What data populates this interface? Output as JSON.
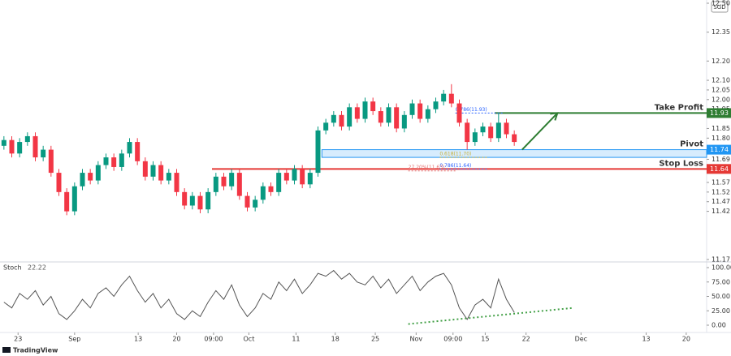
{
  "chart_data": {
    "type": "candlestick",
    "currency": "SGD",
    "brand": "TradingView",
    "xlim": [
      0,
      90
    ],
    "xticks": [
      {
        "value": 2.3,
        "label": "23"
      },
      {
        "value": 9.5,
        "label": "Sep"
      },
      {
        "value": 17.6,
        "label": "13"
      },
      {
        "value": 22.5,
        "label": "20"
      },
      {
        "value": 27.2,
        "label": "09:00"
      },
      {
        "value": 31.7,
        "label": "Oct"
      },
      {
        "value": 37.7,
        "label": "11"
      },
      {
        "value": 42.7,
        "label": "18"
      },
      {
        "value": 47.8,
        "label": "25"
      },
      {
        "value": 53,
        "label": "Nov"
      },
      {
        "value": 57.7,
        "label": "09:00"
      },
      {
        "value": 61.8,
        "label": "15"
      },
      {
        "value": 67,
        "label": "22"
      },
      {
        "value": 74,
        "label": "Dec"
      },
      {
        "value": 82.3,
        "label": "13"
      },
      {
        "value": 87.4,
        "label": "20"
      }
    ],
    "ylim": [
      11.17,
      12.5
    ],
    "yticks": [
      {
        "value": 12.5,
        "label": "12.50"
      },
      12.35,
      {
        "value": 12.2,
        "label": "12.20"
      },
      {
        "value": 12.1,
        "label": "12.10"
      },
      12.05,
      {
        "value": 12.0,
        "label": "12.00"
      },
      11.95,
      11.85,
      {
        "value": 11.8,
        "label": "11.80"
      },
      11.69,
      11.57,
      11.52,
      11.47,
      11.42,
      11.17
    ],
    "grid": false,
    "up_color": "#089981",
    "down_color": "#f23645",
    "open": [
      11.76,
      11.79,
      11.72,
      11.78,
      11.81,
      11.7,
      11.74,
      11.62,
      11.52,
      11.42,
      11.55,
      11.62,
      11.58,
      11.66,
      11.7,
      11.65,
      11.72,
      11.78,
      11.68,
      11.6,
      11.66,
      11.58,
      11.62,
      11.52,
      11.45,
      11.5,
      11.43,
      11.52,
      11.6,
      11.55,
      11.62,
      11.5,
      11.44,
      11.48,
      11.55,
      11.52,
      11.62,
      11.58,
      11.64,
      11.56,
      11.62,
      11.84,
      11.88,
      11.92,
      11.86,
      11.96,
      11.9,
      11.99,
      11.94,
      11.88,
      11.96,
      11.85,
      11.92,
      11.98,
      11.9,
      11.95,
      11.99,
      12.03,
      11.98,
      11.88,
      11.78,
      11.83,
      11.86,
      11.8,
      11.88,
      11.82
    ],
    "high": [
      11.81,
      11.81,
      11.8,
      11.83,
      11.83,
      11.76,
      11.76,
      11.64,
      11.54,
      11.57,
      11.64,
      11.64,
      11.68,
      11.72,
      11.72,
      11.74,
      11.8,
      11.8,
      11.7,
      11.68,
      11.68,
      11.64,
      11.64,
      11.54,
      11.52,
      11.52,
      11.54,
      11.62,
      11.62,
      11.64,
      11.64,
      11.52,
      11.5,
      11.57,
      11.57,
      11.64,
      11.64,
      11.66,
      11.66,
      11.64,
      11.86,
      11.9,
      11.94,
      11.94,
      11.98,
      11.98,
      12.01,
      12.01,
      11.96,
      11.98,
      11.98,
      11.94,
      12.0,
      12.0,
      11.97,
      12.01,
      12.05,
      12.08,
      12.0,
      11.9,
      11.85,
      11.88,
      11.88,
      11.93,
      11.9,
      11.84
    ],
    "low": [
      11.74,
      11.7,
      11.7,
      11.76,
      11.68,
      11.68,
      11.6,
      11.5,
      11.4,
      11.4,
      11.53,
      11.56,
      11.56,
      11.64,
      11.63,
      11.63,
      11.7,
      11.66,
      11.58,
      11.58,
      11.56,
      11.56,
      11.5,
      11.43,
      11.43,
      11.41,
      11.41,
      11.5,
      11.53,
      11.53,
      11.48,
      11.42,
      11.42,
      11.46,
      11.5,
      11.5,
      11.56,
      11.56,
      11.54,
      11.54,
      11.6,
      11.82,
      11.86,
      11.84,
      11.84,
      11.88,
      11.88,
      11.92,
      11.86,
      11.86,
      11.83,
      11.83,
      11.9,
      11.88,
      11.88,
      11.93,
      11.97,
      11.96,
      11.86,
      11.74,
      11.76,
      11.81,
      11.78,
      11.78,
      11.8,
      11.76
    ],
    "close": [
      11.79,
      11.72,
      11.78,
      11.81,
      11.7,
      11.74,
      11.62,
      11.52,
      11.42,
      11.55,
      11.62,
      11.58,
      11.66,
      11.7,
      11.65,
      11.72,
      11.78,
      11.68,
      11.6,
      11.66,
      11.58,
      11.62,
      11.52,
      11.45,
      11.5,
      11.43,
      11.52,
      11.6,
      11.55,
      11.62,
      11.5,
      11.44,
      11.48,
      11.55,
      11.52,
      11.62,
      11.58,
      11.64,
      11.56,
      11.62,
      11.84,
      11.88,
      11.92,
      11.86,
      11.96,
      11.9,
      11.99,
      11.94,
      11.88,
      11.96,
      11.85,
      11.92,
      11.98,
      11.9,
      11.95,
      11.99,
      12.03,
      11.98,
      11.88,
      11.78,
      11.83,
      11.86,
      11.8,
      11.88,
      11.82,
      11.78
    ],
    "levels": [
      {
        "name": "Take Profit",
        "value": 11.93,
        "color": "#2e7d32"
      },
      {
        "name": "Pivot",
        "value": 11.74,
        "band_low": 11.7,
        "color": "#90caf9"
      },
      {
        "name": "Stop Loss",
        "value": 11.64,
        "color": "#e53935"
      }
    ],
    "fibs": [
      {
        "label": "0.786(11.93)",
        "value": 11.93,
        "color": "#2962ff"
      },
      {
        "label": "0.618(11.70)",
        "value": 11.7,
        "color": "#c9b037"
      },
      {
        "label": "0.786(11.64)",
        "value": 11.64,
        "color": "#2962ff"
      },
      {
        "label": "27.20%(11.63)",
        "value": 11.63,
        "color": "#e57373"
      }
    ],
    "stoch": {
      "name": "Stoch",
      "color": "#555555",
      "ylim": [
        0,
        100
      ],
      "yticks": [
        {
          "value": 0,
          "label": "0.00"
        },
        {
          "value": 25,
          "label": "25.00"
        },
        {
          "value": 50,
          "label": "50.00"
        },
        {
          "value": 75,
          "label": "75.00"
        },
        {
          "value": 100,
          "label": "100.00"
        }
      ],
      "values": [
        40,
        30,
        55,
        45,
        60,
        35,
        50,
        20,
        10,
        25,
        45,
        30,
        55,
        65,
        50,
        70,
        85,
        60,
        40,
        55,
        30,
        45,
        20,
        10,
        25,
        15,
        40,
        60,
        45,
        70,
        35,
        15,
        30,
        55,
        45,
        75,
        60,
        80,
        55,
        70,
        90,
        85,
        95,
        80,
        90,
        75,
        70,
        85,
        65,
        80,
        55,
        70,
        85,
        60,
        75,
        85,
        90,
        70,
        30,
        10,
        35,
        45,
        30,
        80,
        45,
        22.22
      ],
      "trendline": [
        2,
        30
      ],
      "trend_color": "#43a047"
    }
  }
}
